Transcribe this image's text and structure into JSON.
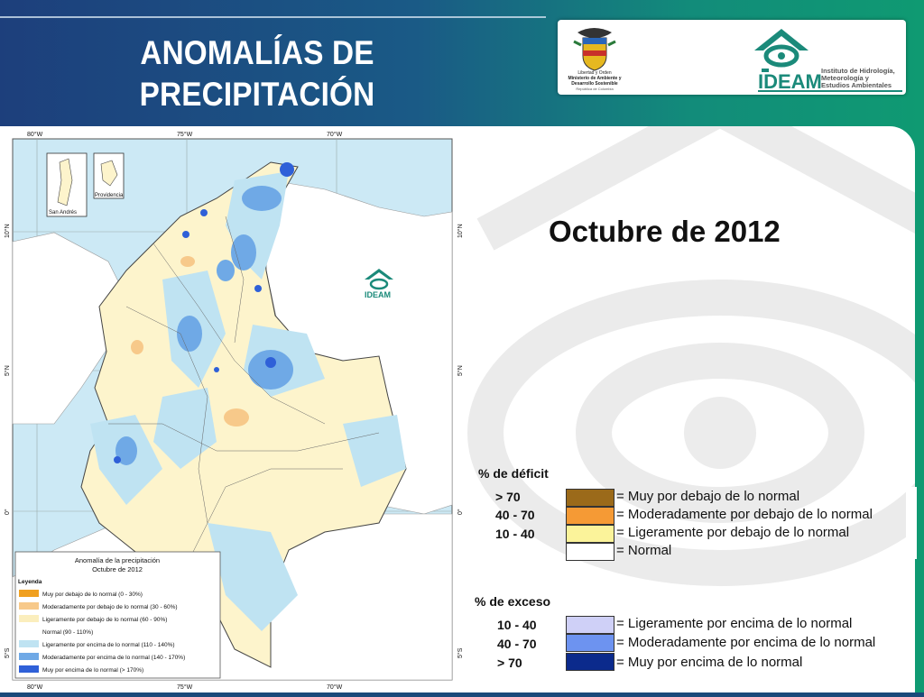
{
  "slide": {
    "title_line1": "ANOMALÍAS DE",
    "title_line2": "PRECIPITACIÓN",
    "date": "Octubre de 2012",
    "colors": {
      "bg_left": "#1d3f7c",
      "bg_right": "#0f9a72"
    }
  },
  "logos": {
    "ministry_line1": "Libertad y Orden",
    "ministry_line2": "Ministerio de Ambiente y",
    "ministry_line3": "Desarrollo Sostenible",
    "ministry_line4": "República de Colombia",
    "ideam": "IDEAM",
    "ideam_line1": "Instituto de Hidrología,",
    "ideam_line2": "Meteorología y",
    "ideam_line3": "Estudios Ambientales"
  },
  "map": {
    "lon_labels": [
      "80°W",
      "75°W",
      "70°W"
    ],
    "lat_labels": [
      "10°N",
      "5°N",
      "0°",
      "5°S"
    ],
    "inset1": "San Andrés",
    "inset2": "Providencia",
    "watermark": "IDEAM",
    "legend_title1": "Anomalía de la precipitación",
    "legend_title2": "Octubre de 2012",
    "legend_header": "Leyenda",
    "legend_items": [
      {
        "label": "Muy por debajo de lo normal (0 - 30%)",
        "color": "#f0a020"
      },
      {
        "label": "Moderadamente por debajo de lo normal (30 - 60%)",
        "color": "#f7c98a"
      },
      {
        "label": "Ligeramente por debajo de lo normal (60 - 90%)",
        "color": "#fbeebd"
      },
      {
        "label": "Normal (90 - 110%)",
        "color": "#ffffff"
      },
      {
        "label": "Ligeramente por encima de lo normal (110 - 140%)",
        "color": "#bfe3f2"
      },
      {
        "label": "Moderadamente por encima de lo normal (140 - 170%)",
        "color": "#6fa9e6"
      },
      {
        "label": "Muy por encima de lo normal (> 170%)",
        "color": "#2f60d8"
      }
    ]
  },
  "big_legend": {
    "deficit_title": "% de déficit",
    "excess_title": "% de exceso",
    "deficit": [
      {
        "range": "> 70",
        "label": "= Muy por debajo de lo normal",
        "color": "#9b6a1a"
      },
      {
        "range": "40 -  70",
        "label": "= Moderadamente por debajo de lo normal",
        "color": "#f59a35"
      },
      {
        "range": "10 -  40",
        "label": "= Ligeramente por debajo de lo normal",
        "color": "#fbf39a"
      },
      {
        "range": "",
        "label": "= Normal",
        "color": "#ffffff"
      }
    ],
    "excess": [
      {
        "range": "10 -  40",
        "label": "= Ligeramente por encima de lo normal",
        "color": "#cfd0f7"
      },
      {
        "range": "40 -  70",
        "label": "= Moderadamente por encima de lo normal",
        "color": "#6d93f0"
      },
      {
        "range": "> 70",
        "label": "= Muy por encima de lo normal",
        "color": "#0b2a8c"
      }
    ]
  }
}
